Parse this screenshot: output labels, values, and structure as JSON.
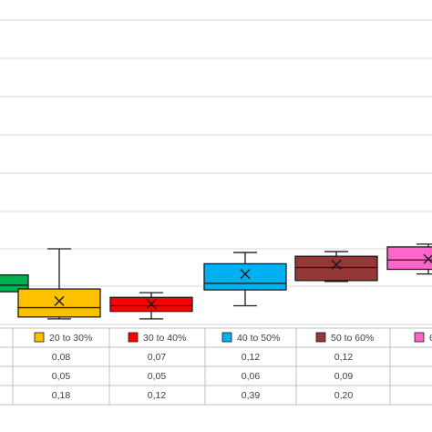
{
  "chart_data": {
    "type": "box",
    "title": "",
    "grid": true,
    "legend": "table-below",
    "series": [
      {
        "name": "",
        "color": "#00b050",
        "min": 0.165,
        "q1": 0.175,
        "median": 0.21,
        "q3": 0.265,
        "max": 0.27,
        "mean": 0.22
      },
      {
        "name": "20 to 30%",
        "color": "#ffc000",
        "min": 0.03,
        "q1": 0.04,
        "median": 0.09,
        "q3": 0.19,
        "max": 0.405,
        "mean": 0.125
      },
      {
        "name": "30 to 40%",
        "color": "#ff0000",
        "min": 0.03,
        "q1": 0.07,
        "median": 0.1,
        "q3": 0.145,
        "max": 0.17,
        "mean": 0.11
      },
      {
        "name": "40 to 50%",
        "color": "#00b0f0",
        "min": 0.1,
        "q1": 0.185,
        "median": 0.22,
        "q3": 0.325,
        "max": 0.385,
        "mean": 0.27
      },
      {
        "name": "50 to 60%",
        "color": "#953735",
        "min": 0.23,
        "q1": 0.235,
        "median": 0.305,
        "q3": 0.365,
        "max": 0.39,
        "mean": 0.32
      },
      {
        "name": "6",
        "color": "#ff66cc",
        "min": 0.27,
        "q1": 0.295,
        "median": 0.345,
        "q3": 0.415,
        "max": 0.43,
        "mean": 0.35
      }
    ],
    "table_rows": [
      [
        "",
        "0,08",
        "0,07",
        "0,12",
        "0,12",
        ""
      ],
      [
        "",
        "0,05",
        "0,05",
        "0,06",
        "0,09",
        ""
      ],
      [
        "",
        "0,18",
        "0,12",
        "0,39",
        "0,20",
        ""
      ]
    ]
  }
}
